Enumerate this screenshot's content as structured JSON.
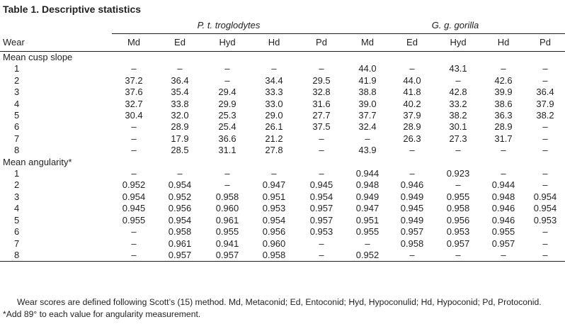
{
  "title": "Table 1. Descriptive statistics",
  "group1": "P. t. troglodytes",
  "group2": "G. g. gorilla",
  "columns": [
    "Wear",
    "Md",
    "Ed",
    "Hyd",
    "Hd",
    "Pd",
    "Md",
    "Ed",
    "Hyd",
    "Hd",
    "Pd"
  ],
  "section1": "Mean cusp slope",
  "section2": "Mean angularity*",
  "rows1": [
    [
      "1",
      "–",
      "–",
      "–",
      "–",
      "–",
      "44.0",
      "–",
      "43.1",
      "–",
      "–"
    ],
    [
      "2",
      "37.2",
      "36.4",
      "–",
      "34.4",
      "29.5",
      "41.9",
      "44.0",
      "–",
      "42.6",
      "–"
    ],
    [
      "3",
      "37.6",
      "35.4",
      "29.4",
      "33.3",
      "32.8",
      "38.8",
      "41.8",
      "42.8",
      "39.9",
      "36.4"
    ],
    [
      "4",
      "32.7",
      "33.8",
      "29.9",
      "33.0",
      "31.6",
      "39.0",
      "40.2",
      "33.2",
      "38.6",
      "37.9"
    ],
    [
      "5",
      "30.4",
      "32.0",
      "25.3",
      "29.0",
      "27.7",
      "37.7",
      "37.9",
      "38.2",
      "36.3",
      "38.2"
    ],
    [
      "6",
      "–",
      "28.9",
      "25.4",
      "26.1",
      "37.5",
      "32.4",
      "28.9",
      "30.1",
      "28.9",
      "–"
    ],
    [
      "7",
      "–",
      "17.9",
      "36.6",
      "21.2",
      "–",
      "–",
      "26.3",
      "27.3",
      "31.7",
      "–"
    ],
    [
      "8",
      "–",
      "28.5",
      "31.1",
      "27.8",
      "–",
      "43.9",
      "–",
      "–",
      "–",
      "–"
    ]
  ],
  "rows2": [
    [
      "1",
      "–",
      "–",
      "–",
      "–",
      "–",
      "0.944",
      "–",
      "0.923",
      "–",
      "–"
    ],
    [
      "2",
      "0.952",
      "0.954",
      "–",
      "0.947",
      "0.945",
      "0.948",
      "0.946",
      "–",
      "0.944",
      "–"
    ],
    [
      "3",
      "0.954",
      "0.952",
      "0.958",
      "0.951",
      "0.954",
      "0.949",
      "0.949",
      "0.955",
      "0.948",
      "0.954"
    ],
    [
      "4",
      "0.945",
      "0.956",
      "0.960",
      "0.953",
      "0.957",
      "0.947",
      "0.945",
      "0.958",
      "0.946",
      "0.954"
    ],
    [
      "5",
      "0.955",
      "0.954",
      "0.961",
      "0.954",
      "0.957",
      "0.951",
      "0.949",
      "0.956",
      "0.946",
      "0.953"
    ],
    [
      "6",
      "–",
      "0.958",
      "0.955",
      "0.956",
      "0.953",
      "0.955",
      "0.957",
      "0.953",
      "0.955",
      "–"
    ],
    [
      "7",
      "–",
      "0.961",
      "0.941",
      "0.960",
      "–",
      "–",
      "0.958",
      "0.957",
      "0.957",
      "–"
    ],
    [
      "8",
      "–",
      "0.957",
      "0.957",
      "0.958",
      "–",
      "0.952",
      "–",
      "–",
      "–",
      "–"
    ]
  ],
  "note1": "Wear scores are defined following Scott’s (15) method. Md, Metaconid; Ed, Entoconid; Hyd, Hypoconulid; Hd, Hypoconid; Pd, Protoconid.",
  "note2": "*Add 89° to each value for angularity measurement."
}
